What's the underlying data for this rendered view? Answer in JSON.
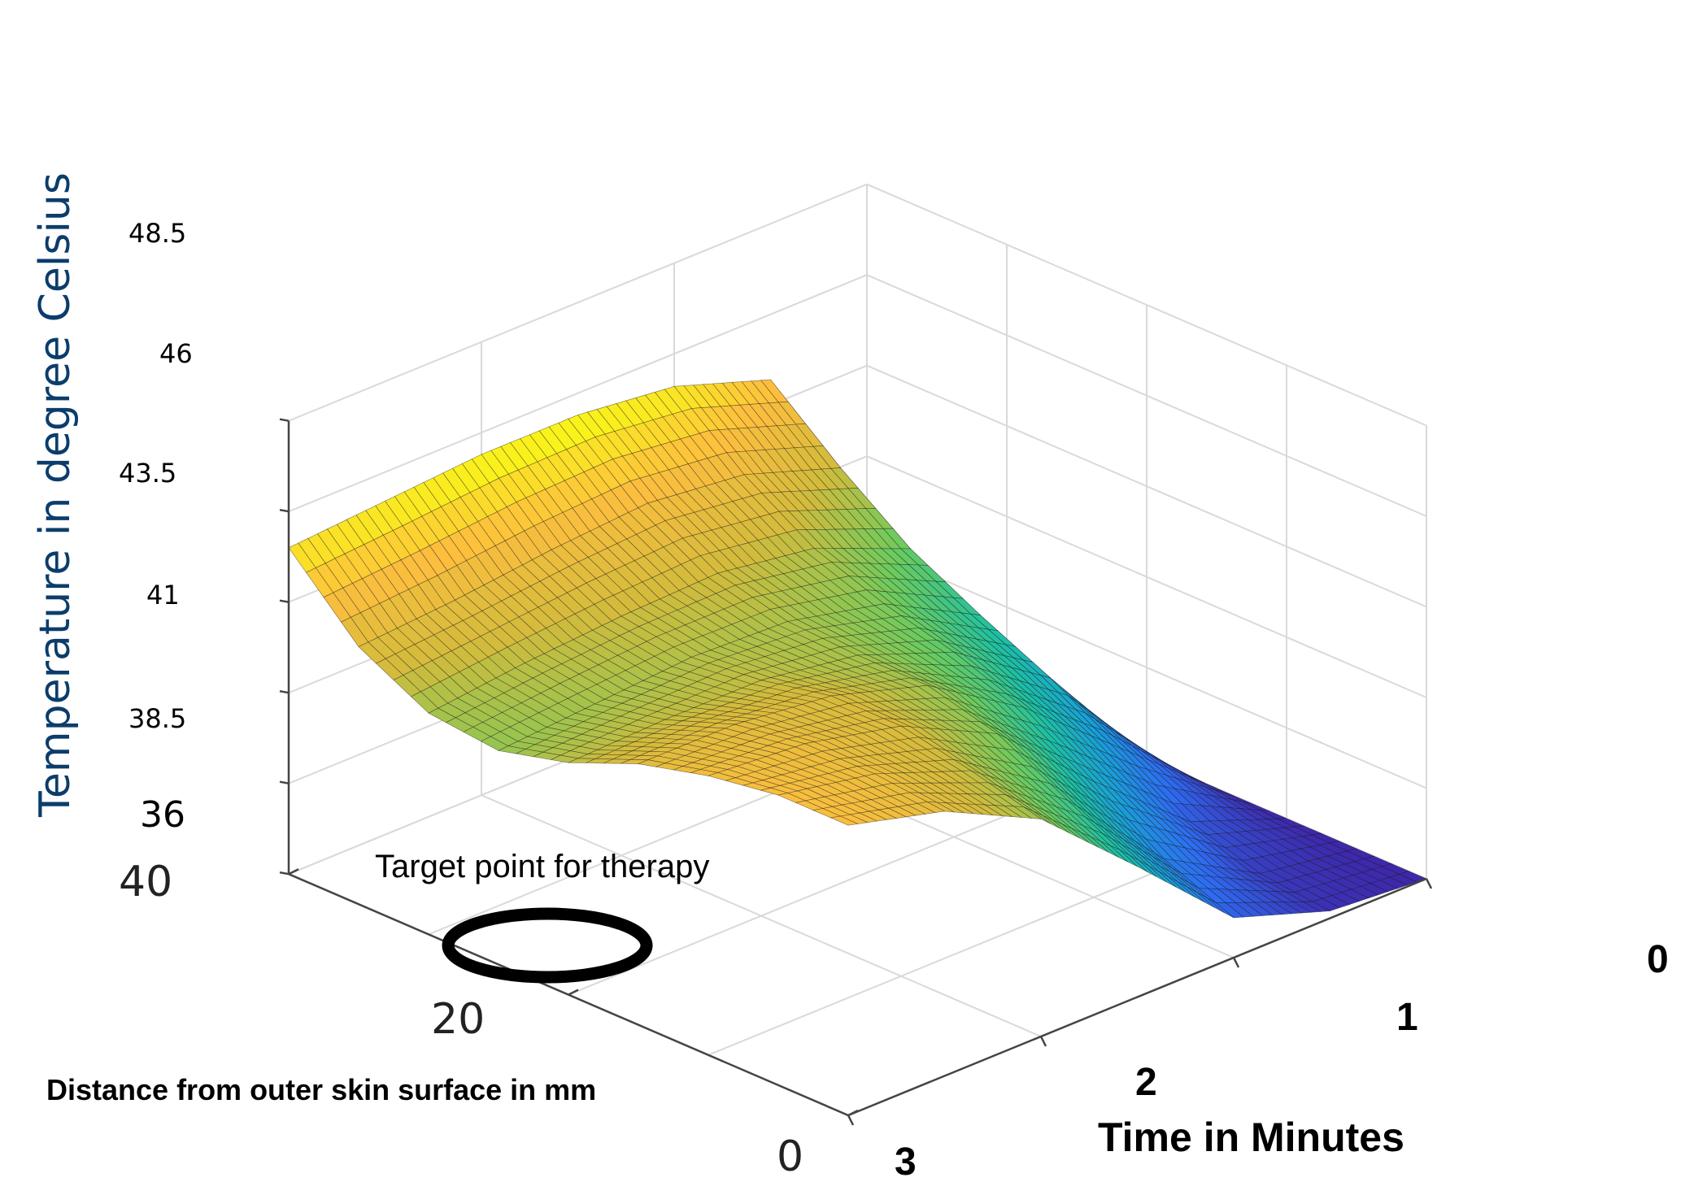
{
  "chart_data": {
    "type": "surface3d",
    "zlabel": "Temperature in degree Celsius",
    "ylabel": "Distance from outer skin surface in mm",
    "xlabel": "Time in Minutes",
    "annotation": "Target point for therapy",
    "x_ticks": [
      "0",
      "1",
      "2",
      "3"
    ],
    "y_ticks": [
      "0",
      "20",
      "40"
    ],
    "z_ticks": [
      "36",
      "38.5",
      "41",
      "43.5",
      "46",
      "48.5"
    ],
    "xlim": [
      0,
      3
    ],
    "ylim": [
      0,
      40
    ],
    "zlim": [
      36,
      48.5
    ],
    "grid": true,
    "colormap": [
      "#3e26a8",
      "#2e6cf2",
      "#1a9ed8",
      "#1ec0a2",
      "#6ccb5e",
      "#d3bb3c",
      "#fdbe3e",
      "#f9fb15"
    ],
    "surface": {
      "distance_mm": [
        0,
        5,
        10,
        15,
        20,
        25,
        30,
        35,
        40
      ],
      "time_min": [
        0,
        0.5,
        1,
        1.5,
        2,
        2.5,
        3
      ],
      "temperature_c": [
        [
          36.0,
          36.2,
          37.1,
          39.6,
          42.0,
          43.3,
          44.0
        ],
        [
          36.0,
          36.4,
          37.9,
          40.6,
          42.5,
          43.5,
          44.0
        ],
        [
          36.0,
          37.0,
          39.2,
          41.6,
          42.9,
          43.5,
          43.7
        ],
        [
          36.0,
          38.2,
          40.4,
          42.1,
          42.9,
          43.2,
          43.2
        ],
        [
          36.0,
          39.3,
          41.1,
          42.1,
          42.5,
          42.5,
          42.4
        ],
        [
          36.0,
          40.2,
          41.6,
          42.2,
          42.3,
          42.1,
          41.9
        ],
        [
          36.0,
          41.2,
          42.3,
          42.7,
          42.6,
          42.4,
          42.1
        ],
        [
          36.0,
          42.6,
          43.5,
          43.8,
          43.6,
          43.3,
          43.1
        ],
        [
          36.0,
          44.2,
          45.1,
          45.4,
          45.4,
          45.2,
          45.0
        ]
      ]
    }
  }
}
